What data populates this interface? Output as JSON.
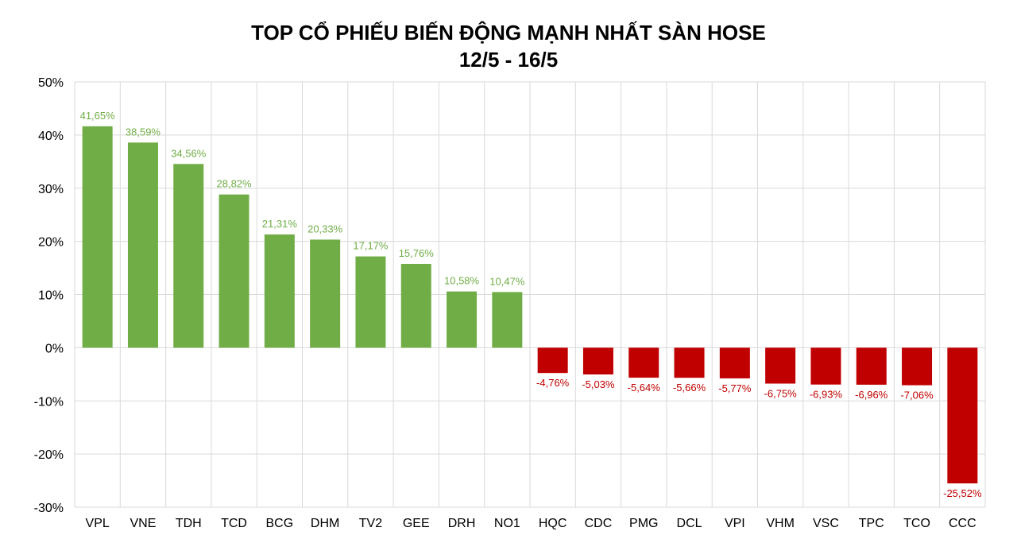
{
  "chart_data": {
    "type": "bar",
    "title": "TOP CỔ PHIẾU BIẾN ĐỘNG MẠNH NHẤT SÀN HOSE",
    "subtitle": "12/5 - 16/5",
    "categories": [
      "VPL",
      "VNE",
      "TDH",
      "TCD",
      "BCG",
      "DHM",
      "TV2",
      "GEE",
      "DRH",
      "NO1",
      "HQC",
      "CDC",
      "PMG",
      "DCL",
      "VPI",
      "VHM",
      "VSC",
      "TPC",
      "TCO",
      "CCC"
    ],
    "values": [
      41.65,
      38.59,
      34.56,
      28.82,
      21.31,
      20.33,
      17.17,
      15.76,
      10.58,
      10.47,
      -4.76,
      -5.03,
      -5.64,
      -5.66,
      -5.77,
      -6.75,
      -6.93,
      -6.96,
      -7.06,
      -25.52
    ],
    "data_labels": [
      "41,65%",
      "38,59%",
      "34,56%",
      "28,82%",
      "21,31%",
      "20,33%",
      "17,17%",
      "15,76%",
      "10,58%",
      "10,47%",
      "-4,76%",
      "-5,03%",
      "-5,64%",
      "-5,66%",
      "-5,77%",
      "-6,75%",
      "-6,93%",
      "-6,96%",
      "-7,06%",
      "-25,52%"
    ],
    "y_ticks": [
      50,
      40,
      30,
      20,
      10,
      0,
      -10,
      -20,
      -30
    ],
    "y_tick_labels": [
      "50%",
      "40%",
      "30%",
      "20%",
      "10%",
      "0%",
      "-10%",
      "-20%",
      "-30%"
    ],
    "ylim": [
      -30,
      50
    ],
    "grid": true,
    "colors": {
      "positive": "#70AD47",
      "negative": "#C00000",
      "grid": "#D9D9D9"
    }
  }
}
